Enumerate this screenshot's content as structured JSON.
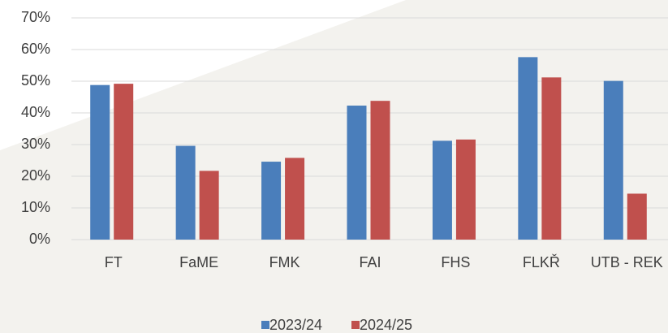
{
  "chart_data": {
    "type": "bar",
    "categories": [
      "FT",
      "FaME",
      "FMK",
      "FAI",
      "FHS",
      "FLKŘ",
      "UTB - REK"
    ],
    "series": [
      {
        "name": "2023/24",
        "color": "#4a7ebb",
        "values": [
          48.8,
          29.6,
          24.6,
          42.3,
          31.2,
          57.6,
          50.1
        ]
      },
      {
        "name": "2024/25",
        "color": "#c0504d",
        "values": [
          49.2,
          21.7,
          25.8,
          43.8,
          31.6,
          51.2,
          14.5
        ]
      }
    ],
    "ylim": [
      0,
      70
    ],
    "yticks": [
      {
        "value": 0,
        "label": "0%"
      },
      {
        "value": 10,
        "label": "10%"
      },
      {
        "value": 20,
        "label": "20%"
      },
      {
        "value": 30,
        "label": "30%"
      },
      {
        "value": 40,
        "label": "40%"
      },
      {
        "value": 50,
        "label": "50%"
      },
      {
        "value": 60,
        "label": "60%"
      },
      {
        "value": 70,
        "label": "70%"
      }
    ],
    "grid": true
  }
}
